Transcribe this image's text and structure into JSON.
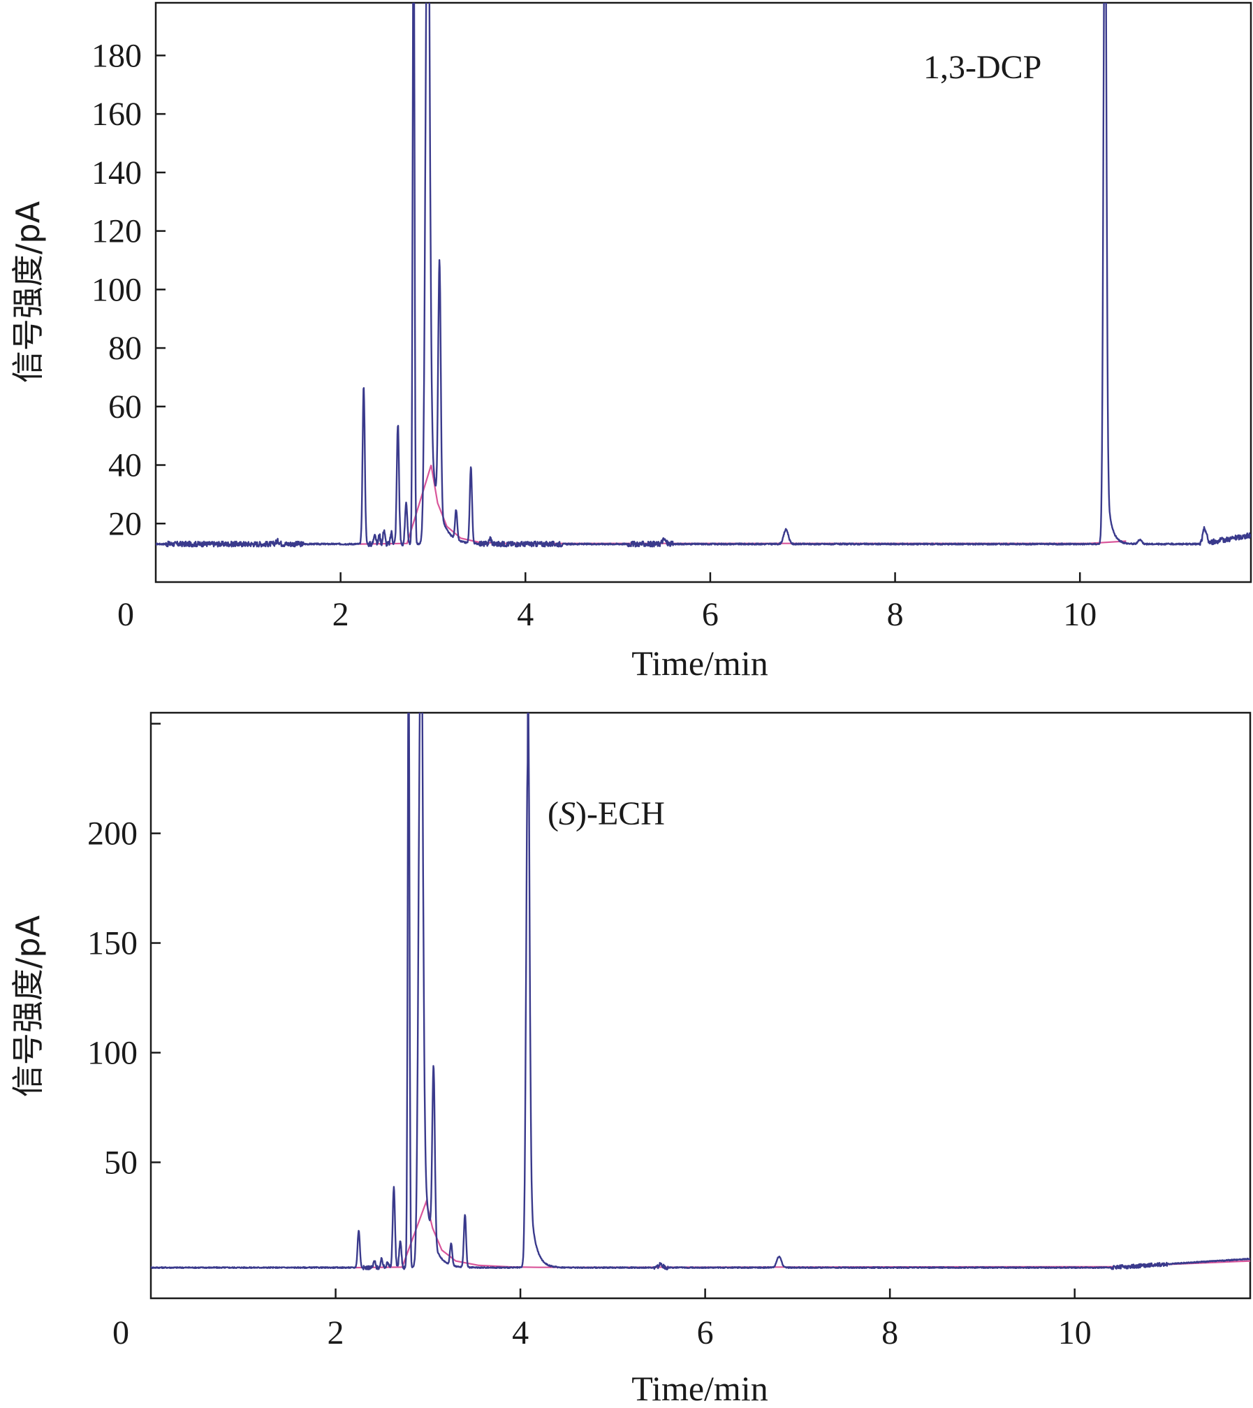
{
  "chart_data": [
    {
      "type": "line",
      "xlabel": "Time/min",
      "ylabel": "信号强度/pA",
      "xlim": [
        0,
        11.85
      ],
      "ylim": [
        0,
        198
      ],
      "x_origin_label": "0",
      "x_ticks": [
        2,
        4,
        6,
        8,
        10
      ],
      "y_ticks": [
        20,
        40,
        60,
        80,
        100,
        120,
        140,
        160,
        180
      ],
      "grid": false,
      "annotations": [
        {
          "text": "1,3-DCP",
          "x": 10.25,
          "y": 180
        }
      ],
      "colors": {
        "signal": "#3a3a8c",
        "baseline": "#d9559a",
        "axis": "#1a1a1a"
      },
      "series": [
        {
          "role": "signal",
          "baseline": 13,
          "noise_ranges": [
            [
              0.1,
              1.6
            ],
            [
              2.3,
              2.7
            ],
            [
              3.5,
              4.4
            ],
            [
              5.1,
              5.6
            ],
            [
              11.3,
              11.85
            ]
          ],
          "peaks": [
            {
              "x": 1.32,
              "h": 1.0,
              "w": 0.02
            },
            {
              "x": 2.25,
              "h": 54,
              "w": 0.012
            },
            {
              "x": 2.37,
              "h": 4,
              "w": 0.01
            },
            {
              "x": 2.42,
              "h": 3,
              "w": 0.01
            },
            {
              "x": 2.47,
              "h": 5,
              "w": 0.01
            },
            {
              "x": 2.55,
              "h": 4,
              "w": 0.01
            },
            {
              "x": 2.62,
              "h": 41,
              "w": 0.012
            },
            {
              "x": 2.71,
              "h": 14,
              "w": 0.012
            },
            {
              "x": 2.79,
              "h": 230,
              "w": 0.01
            },
            {
              "x": 2.94,
              "h": 230,
              "w": 0.022,
              "tail": 0.09,
              "tail_frac": 0.22
            },
            {
              "x": 3.07,
              "h": 85,
              "w": 0.014
            },
            {
              "x": 3.25,
              "h": 10,
              "w": 0.012
            },
            {
              "x": 3.41,
              "h": 26,
              "w": 0.012
            },
            {
              "x": 3.62,
              "h": 2,
              "w": 0.012
            },
            {
              "x": 5.5,
              "h": 1.5,
              "w": 0.02
            },
            {
              "x": 6.82,
              "h": 5,
              "w": 0.025
            },
            {
              "x": 10.27,
              "h": 230,
              "w": 0.016,
              "tail": 0.05,
              "tail_frac": 0.12
            },
            {
              "x": 10.65,
              "h": 1.5,
              "w": 0.02
            },
            {
              "x": 11.35,
              "h": 5,
              "w": 0.02
            }
          ],
          "drift": [
            [
              11.3,
              0
            ],
            [
              11.85,
              3
            ]
          ]
        },
        {
          "role": "baseline",
          "points": [
            [
              2.72,
              13.2
            ],
            [
              2.98,
              40
            ],
            [
              3.05,
              27
            ],
            [
              3.15,
              19
            ],
            [
              3.3,
              15
            ],
            [
              3.5,
              13.6
            ],
            [
              3.8,
              13.2
            ]
          ],
          "flat": [
            [
              2.2,
              13
            ],
            [
              3.8,
              13
            ],
            [
              10.1,
              13.2
            ],
            [
              10.5,
              14
            ]
          ]
        }
      ]
    },
    {
      "type": "line",
      "xlabel": "Time/min",
      "ylabel": "信号强度/pA",
      "xlim": [
        0,
        11.9
      ],
      "ylim": [
        -12,
        255
      ],
      "x_origin_label": "0",
      "x_ticks": [
        2,
        4,
        6,
        8,
        10
      ],
      "y_ticks": [
        50,
        100,
        150,
        200
      ],
      "y_tick_marks": [
        50,
        100,
        150,
        200,
        250
      ],
      "grid": false,
      "annotations": [
        {
          "text": "(S)-ECH",
          "italic_part": "S",
          "x": 4.35,
          "y": 220
        }
      ],
      "colors": {
        "signal": "#3a3a8c",
        "baseline": "#d9559a",
        "axis": "#1a1a1a"
      },
      "series": [
        {
          "role": "signal",
          "baseline": 2,
          "noise_ranges": [
            [
              2.3,
              2.75
            ],
            [
              5.45,
              5.6
            ],
            [
              10.4,
              11.0
            ]
          ],
          "peaks": [
            {
              "x": 2.25,
              "h": 17,
              "w": 0.012
            },
            {
              "x": 2.42,
              "h": 3,
              "w": 0.01
            },
            {
              "x": 2.5,
              "h": 4,
              "w": 0.01
            },
            {
              "x": 2.56,
              "h": 3,
              "w": 0.01
            },
            {
              "x": 2.63,
              "h": 37,
              "w": 0.012
            },
            {
              "x": 2.7,
              "h": 12,
              "w": 0.012
            },
            {
              "x": 2.79,
              "h": 280,
              "w": 0.01
            },
            {
              "x": 2.92,
              "h": 280,
              "w": 0.022,
              "tail": 0.08,
              "tail_frac": 0.25
            },
            {
              "x": 3.06,
              "h": 80,
              "w": 0.014
            },
            {
              "x": 3.25,
              "h": 10,
              "w": 0.012
            },
            {
              "x": 3.4,
              "h": 24,
              "w": 0.012
            },
            {
              "x": 4.08,
              "h": 232,
              "w": 0.018,
              "tail": 0.06,
              "tail_frac": 0.2
            },
            {
              "x": 5.52,
              "h": 1.5,
              "w": 0.02
            },
            {
              "x": 6.8,
              "h": 5,
              "w": 0.025
            }
          ],
          "drift": [
            [
              10.4,
              0
            ],
            [
              11.9,
              4
            ]
          ]
        },
        {
          "role": "baseline",
          "points": [
            [
              2.72,
              2.2
            ],
            [
              2.98,
              32
            ],
            [
              3.05,
              20
            ],
            [
              3.15,
              10
            ],
            [
              3.3,
              5
            ],
            [
              3.55,
              3
            ],
            [
              3.9,
              2.3
            ],
            [
              4.2,
              2.1
            ]
          ],
          "flat": [
            [
              2.2,
              2
            ],
            [
              4.2,
              2.1
            ],
            [
              10.4,
              2.4
            ],
            [
              11.9,
              5
            ]
          ]
        }
      ]
    }
  ]
}
